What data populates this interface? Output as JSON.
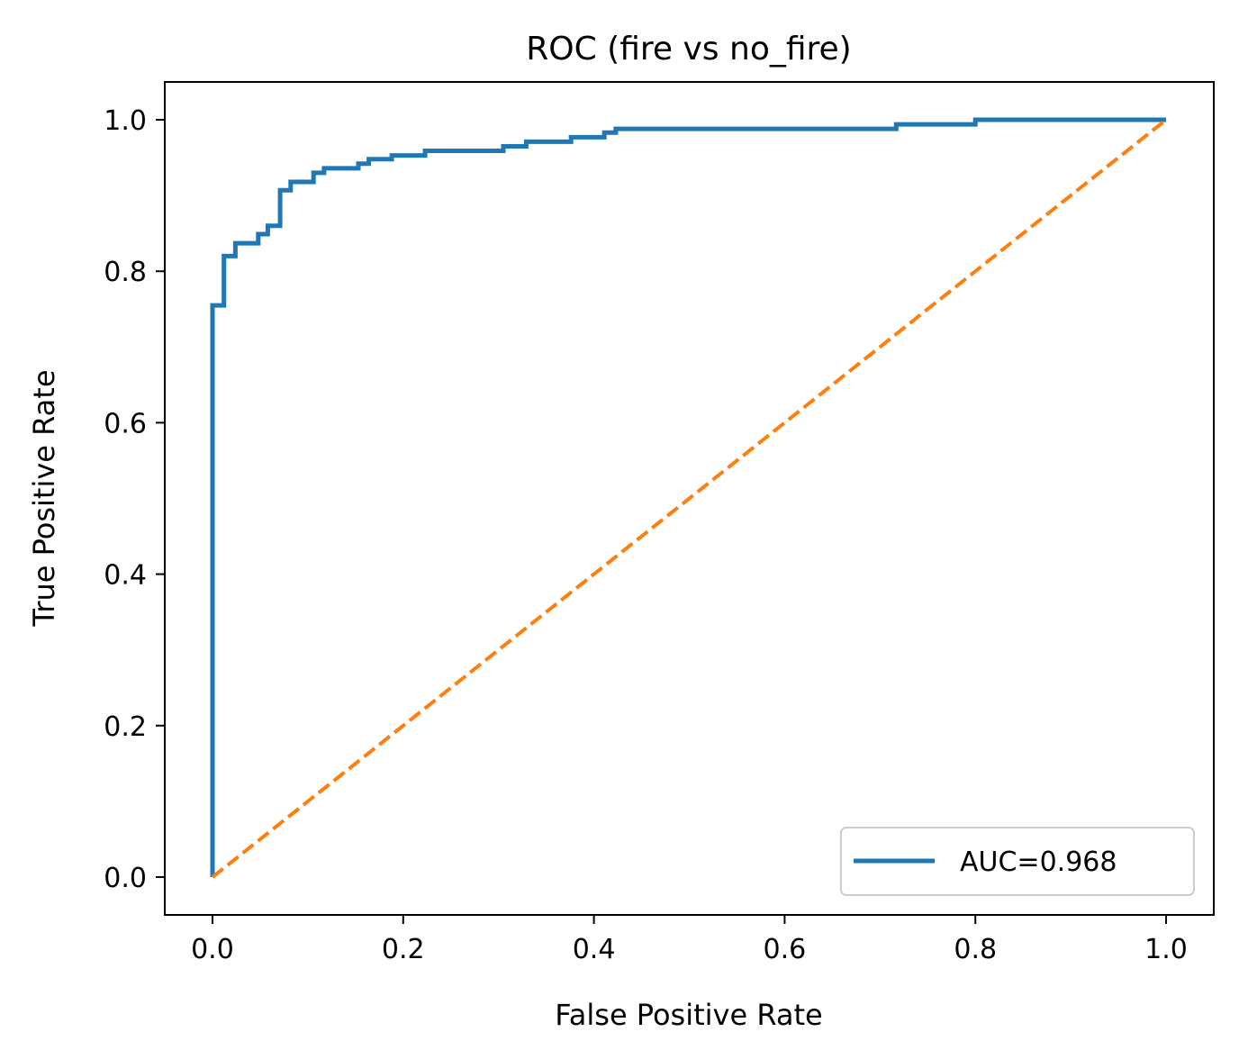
{
  "chart_data": {
    "type": "line",
    "title": "ROC (fire vs no_fire)",
    "xlabel": "False Positive Rate",
    "ylabel": "True Positive Rate",
    "xlim": [
      -0.05,
      1.05
    ],
    "ylim": [
      -0.05,
      1.05
    ],
    "xticks": [
      "0.0",
      "0.2",
      "0.4",
      "0.6",
      "0.8",
      "1.0"
    ],
    "yticks": [
      "0.0",
      "0.2",
      "0.4",
      "0.6",
      "0.8",
      "1.0"
    ],
    "grid": false,
    "legend_position": "lower-right",
    "series": [
      {
        "name": "AUC=0.968",
        "color": "#1f77b4",
        "style": "solid",
        "points": [
          [
            0.0,
            0.0
          ],
          [
            0.0,
            0.755
          ],
          [
            0.012,
            0.755
          ],
          [
            0.012,
            0.82
          ],
          [
            0.024,
            0.82
          ],
          [
            0.024,
            0.837
          ],
          [
            0.048,
            0.837
          ],
          [
            0.048,
            0.849
          ],
          [
            0.058,
            0.849
          ],
          [
            0.058,
            0.86
          ],
          [
            0.071,
            0.86
          ],
          [
            0.071,
            0.907
          ],
          [
            0.082,
            0.907
          ],
          [
            0.082,
            0.918
          ],
          [
            0.106,
            0.918
          ],
          [
            0.106,
            0.93
          ],
          [
            0.117,
            0.93
          ],
          [
            0.117,
            0.936
          ],
          [
            0.153,
            0.936
          ],
          [
            0.153,
            0.942
          ],
          [
            0.164,
            0.942
          ],
          [
            0.164,
            0.948
          ],
          [
            0.188,
            0.948
          ],
          [
            0.188,
            0.953
          ],
          [
            0.223,
            0.953
          ],
          [
            0.223,
            0.959
          ],
          [
            0.305,
            0.959
          ],
          [
            0.305,
            0.965
          ],
          [
            0.329,
            0.965
          ],
          [
            0.329,
            0.971
          ],
          [
            0.376,
            0.971
          ],
          [
            0.376,
            0.977
          ],
          [
            0.411,
            0.977
          ],
          [
            0.411,
            0.983
          ],
          [
            0.423,
            0.983
          ],
          [
            0.423,
            0.988
          ],
          [
            0.717,
            0.988
          ],
          [
            0.717,
            0.994
          ],
          [
            0.8,
            0.994
          ],
          [
            0.8,
            1.0
          ],
          [
            1.0,
            1.0
          ]
        ]
      },
      {
        "color": "#ff7f0e",
        "style": "dashed",
        "points": [
          [
            0.0,
            0.0
          ],
          [
            1.0,
            1.0
          ]
        ]
      }
    ]
  }
}
